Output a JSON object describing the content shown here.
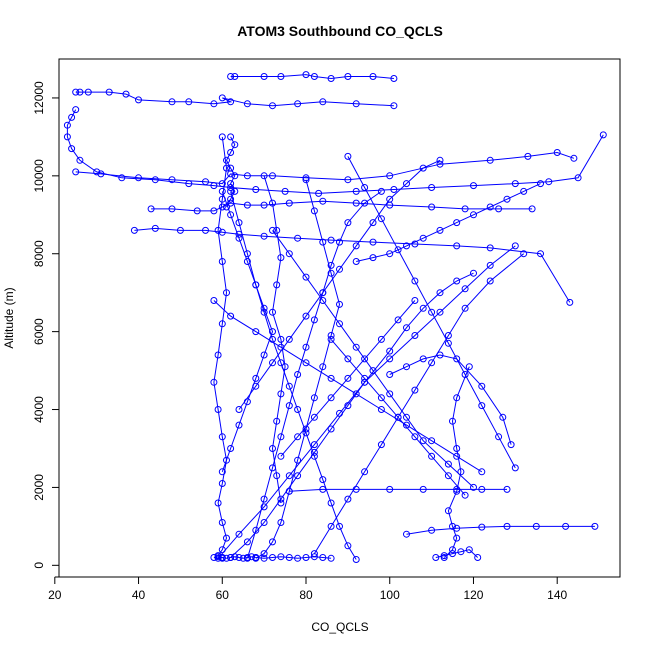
{
  "chart_data": {
    "type": "line",
    "title": "ATOM3 Southbound CO_QCLS",
    "xlabel": "CO_QCLS",
    "ylabel": "Altitude (m)",
    "xlim": [
      21,
      155
    ],
    "ylim": [
      -300,
      13000
    ],
    "xticks": [
      20,
      40,
      60,
      80,
      100,
      120,
      140
    ],
    "yticks": [
      0,
      2000,
      4000,
      6000,
      8000,
      10000,
      12000
    ],
    "grid": false,
    "legend": "none",
    "marker": "open-circle",
    "color": "#0000ff",
    "series": [
      {
        "x": [
          25,
          26,
          28,
          33,
          37,
          40,
          48,
          52,
          58,
          62,
          60,
          66,
          72,
          78,
          84,
          92,
          101
        ],
        "y": [
          12150,
          12150,
          12150,
          12150,
          12100,
          11950,
          11900,
          11900,
          11850,
          11900,
          12000,
          11850,
          11800,
          11850,
          11900,
          11850,
          11800
        ]
      },
      {
        "x": [
          62,
          63,
          70,
          74,
          80,
          82,
          86,
          90,
          96,
          101
        ],
        "y": [
          12550,
          12550,
          12550,
          12550,
          12600,
          12550,
          12500,
          12550,
          12550,
          12500
        ]
      },
      {
        "x": [
          25,
          24,
          23,
          23,
          24,
          26,
          30,
          36,
          44,
          52,
          58,
          62,
          68,
          75,
          83,
          92,
          101,
          110,
          120,
          130,
          138,
          145,
          151
        ],
        "y": [
          11700,
          11500,
          11300,
          11000,
          10700,
          10400,
          10100,
          9950,
          9900,
          9800,
          9750,
          9700,
          9650,
          9600,
          9550,
          9600,
          9650,
          9700,
          9750,
          9800,
          9850,
          9950,
          11050
        ]
      },
      {
        "x": [
          25,
          31,
          40,
          48,
          56,
          60,
          62,
          66,
          72,
          80,
          90,
          100,
          112,
          124,
          133,
          140,
          144
        ],
        "y": [
          10100,
          10050,
          9950,
          9900,
          9850,
          9800,
          10050,
          10000,
          10000,
          9950,
          9900,
          10000,
          10300,
          10400,
          10500,
          10600,
          10450
        ]
      },
      {
        "x": [
          43,
          48,
          54,
          58,
          60,
          62,
          66,
          70,
          76,
          84,
          92,
          100,
          110,
          118,
          126,
          134
        ],
        "y": [
          9150,
          9150,
          9100,
          9100,
          9200,
          9300,
          9250,
          9250,
          9300,
          9350,
          9300,
          9250,
          9200,
          9150,
          9150,
          9150
        ]
      },
      {
        "x": [
          39,
          44,
          50,
          56,
          60,
          64,
          70,
          78,
          86,
          96,
          106,
          116,
          124,
          136,
          143
        ],
        "y": [
          8600,
          8650,
          8600,
          8600,
          8550,
          8500,
          8450,
          8400,
          8350,
          8300,
          8250,
          8200,
          8150,
          8000,
          6750
        ]
      },
      {
        "x": [
          60,
          61,
          60,
          59,
          60,
          61,
          60,
          59,
          58,
          59,
          60,
          61,
          60,
          59,
          60,
          61,
          60,
          59,
          60,
          60
        ],
        "y": [
          11000,
          10200,
          9400,
          8600,
          7800,
          7000,
          6200,
          5400,
          4700,
          4000,
          3300,
          2700,
          2100,
          1600,
          1100,
          700,
          400,
          250,
          200,
          180
        ]
      },
      {
        "x": [
          62,
          64,
          66,
          68,
          70,
          72,
          74,
          76,
          78,
          80,
          82,
          84,
          86,
          88,
          90,
          92
        ],
        "y": [
          9600,
          8800,
          8000,
          7200,
          6500,
          5800,
          5200,
          4600,
          4000,
          3400,
          2800,
          2200,
          1600,
          1000,
          500,
          150
        ]
      },
      {
        "x": [
          66,
          68,
          70,
          72,
          74,
          76,
          78,
          80,
          82,
          84,
          86,
          88,
          90,
          94,
          98
        ],
        "y": [
          180,
          900,
          1700,
          2500,
          3300,
          4100,
          4900,
          5600,
          6300,
          7000,
          7700,
          8300,
          8800,
          9300,
          9600
        ]
      },
      {
        "x": [
          70,
          72,
          73,
          74,
          73,
          72,
          74,
          75,
          74,
          73,
          72,
          73,
          74
        ],
        "y": [
          10000,
          9300,
          8600,
          7900,
          7200,
          6500,
          5800,
          5100,
          4400,
          3700,
          3000,
          2300,
          1600
        ]
      },
      {
        "x": [
          62,
          66,
          70,
          74,
          78,
          82,
          86,
          90,
          94,
          100,
          106,
          112,
          118,
          124,
          130
        ],
        "y": [
          200,
          600,
          1100,
          1700,
          2300,
          2900,
          3500,
          4100,
          4700,
          5300,
          5900,
          6500,
          7100,
          7700,
          8200
        ]
      },
      {
        "x": [
          59,
          64,
          70,
          76,
          82,
          88,
          94,
          100,
          104,
          108,
          112,
          116,
          120
        ],
        "y": [
          180,
          800,
          1500,
          2300,
          3100,
          3900,
          4700,
          5500,
          6100,
          6600,
          7000,
          7300,
          7500
        ]
      },
      {
        "x": [
          113,
          115,
          116,
          115,
          114,
          116,
          117,
          116,
          115,
          116,
          119
        ],
        "y": [
          200,
          400,
          700,
          1000,
          1400,
          1900,
          2400,
          3000,
          3700,
          4300,
          5100
        ]
      },
      {
        "x": [
          104,
          110,
          116,
          122,
          128,
          135,
          142,
          149
        ],
        "y": [
          800,
          900,
          950,
          980,
          1000,
          1000,
          1000,
          1000
        ]
      },
      {
        "x": [
          76,
          84,
          92,
          100,
          108,
          116,
          122,
          128
        ],
        "y": [
          1900,
          1950,
          1950,
          1950,
          1950,
          1950,
          1950,
          1950
        ]
      },
      {
        "x": [
          100,
          104,
          108,
          112,
          116,
          122,
          127,
          129
        ],
        "y": [
          4900,
          5100,
          5300,
          5400,
          5300,
          4600,
          3800,
          3100
        ]
      },
      {
        "x": [
          80,
          82,
          84,
          86,
          88,
          86,
          84,
          82,
          80,
          78,
          76,
          74,
          72,
          70,
          68
        ],
        "y": [
          9900,
          9100,
          8300,
          7500,
          6700,
          5900,
          5100,
          4300,
          3500,
          2700,
          1900,
          1100,
          600,
          300,
          180
        ]
      },
      {
        "x": [
          90,
          94,
          98,
          102,
          106,
          110,
          114,
          118,
          122,
          126,
          130
        ],
        "y": [
          10500,
          9700,
          8900,
          8100,
          7300,
          6500,
          5700,
          4900,
          4100,
          3300,
          2500
        ]
      },
      {
        "x": [
          58,
          62,
          68,
          74,
          80,
          86,
          92,
          98,
          104,
          110,
          116,
          122
        ],
        "y": [
          6800,
          6400,
          6000,
          5600,
          5200,
          4800,
          4400,
          4000,
          3600,
          3200,
          2800,
          2400
        ]
      },
      {
        "x": [
          64,
          68,
          72,
          76,
          80,
          84,
          88,
          92,
          96,
          100,
          104,
          108,
          112
        ],
        "y": [
          4000,
          4600,
          5200,
          5800,
          6400,
          7000,
          7600,
          8200,
          8800,
          9400,
          9800,
          10200,
          10400
        ]
      },
      {
        "x": [
          60,
          62,
          64,
          66,
          68,
          70,
          72,
          70,
          68,
          66,
          64,
          62,
          60
        ],
        "y": [
          2400,
          3000,
          3600,
          4200,
          4800,
          5400,
          6000,
          6600,
          7200,
          7800,
          8400,
          9000,
          9600
        ]
      },
      {
        "x": [
          72,
          76,
          80,
          84,
          88,
          92,
          96,
          100,
          104,
          108,
          114,
          120
        ],
        "y": [
          8600,
          8000,
          7400,
          6800,
          6200,
          5600,
          5000,
          4400,
          3800,
          3200,
          2600,
          2000
        ]
      },
      {
        "x": [
          82,
          86,
          90,
          94,
          98,
          102,
          106,
          110,
          114,
          118,
          124,
          132
        ],
        "y": [
          300,
          1000,
          1700,
          2400,
          3100,
          3800,
          4500,
          5200,
          5900,
          6600,
          7300,
          8000
        ]
      },
      {
        "x": [
          111,
          113,
          115,
          117,
          119,
          121
        ],
        "y": [
          200,
          250,
          300,
          350,
          400,
          200
        ]
      },
      {
        "x": [
          58,
          59,
          60,
          61,
          62,
          63,
          64,
          65,
          66,
          67,
          68
        ],
        "y": [
          200,
          220,
          200,
          180,
          200,
          220,
          200,
          180,
          200,
          220,
          200
        ]
      },
      {
        "x": [
          68,
          70,
          72,
          74,
          76,
          78,
          80,
          82,
          84,
          86
        ],
        "y": [
          200,
          180,
          200,
          220,
          200,
          180,
          200,
          220,
          200,
          180
        ]
      },
      {
        "x": [
          62,
          63,
          62,
          61,
          62,
          63,
          62,
          63,
          62,
          61
        ],
        "y": [
          11000,
          10800,
          10600,
          10400,
          10200,
          10000,
          9800,
          9600,
          9400,
          9200
        ]
      },
      {
        "x": [
          92,
          96,
          100,
          104,
          108,
          112,
          116,
          120,
          124,
          128,
          132,
          136
        ],
        "y": [
          7800,
          7900,
          8000,
          8200,
          8400,
          8600,
          8800,
          9000,
          9200,
          9400,
          9600,
          9800
        ]
      },
      {
        "x": [
          86,
          90,
          94,
          98,
          102,
          106,
          110,
          114,
          118
        ],
        "y": [
          5800,
          5300,
          4800,
          4300,
          3800,
          3300,
          2800,
          2300,
          1800
        ]
      },
      {
        "x": [
          74,
          78,
          82,
          86,
          90,
          94,
          98,
          102,
          106
        ],
        "y": [
          2800,
          3300,
          3800,
          4300,
          4800,
          5300,
          5800,
          6300,
          6800
        ]
      }
    ]
  }
}
